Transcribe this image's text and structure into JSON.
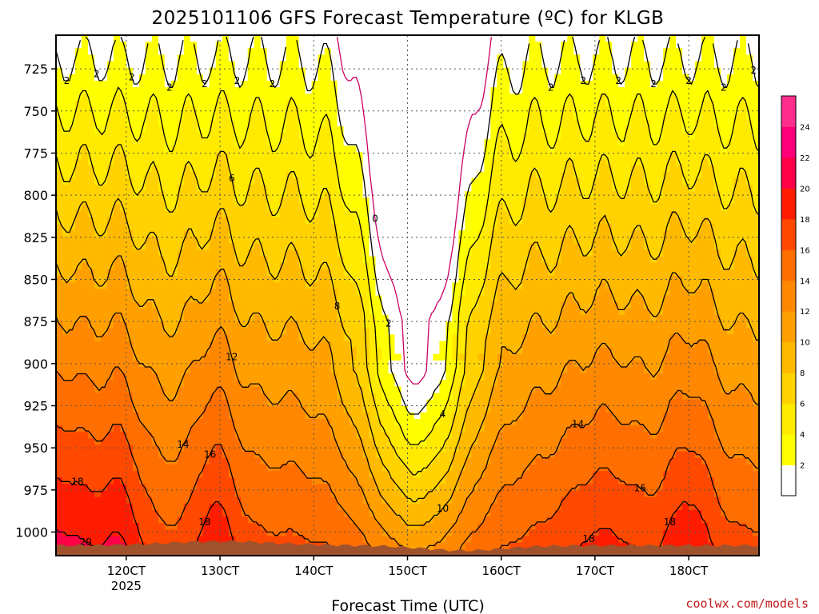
{
  "chart_data": {
    "type": "heatmap",
    "title": "2025101106 GFS Forecast Temperature (ºC) for KLGB",
    "xlabel": "Forecast Time (UTC)",
    "credit": "coolwx.com/models",
    "y_axis": {
      "ticks": [
        "725",
        "750",
        "775",
        "800",
        "825",
        "850",
        "875",
        "900",
        "925",
        "950",
        "975",
        "1000"
      ],
      "values": [
        725,
        750,
        775,
        800,
        825,
        850,
        875,
        900,
        925,
        950,
        975,
        1000
      ],
      "range": [
        705,
        1014
      ],
      "inverted": true
    },
    "x_axis": {
      "ticks": [
        "120CT",
        "130CT",
        "140CT",
        "150CT",
        "160CT",
        "170CT",
        "180CT"
      ],
      "sub_label": "2025",
      "hours": [
        120,
        130,
        140,
        150,
        160,
        170,
        180
      ],
      "range": [
        112.5,
        187.5
      ]
    },
    "grid": true,
    "colorbar": {
      "labels": [
        "2",
        "4",
        "6",
        "8",
        "10",
        "12",
        "14",
        "16",
        "18",
        "20",
        "22",
        "24"
      ],
      "levels": [
        0,
        2,
        4,
        6,
        8,
        10,
        12,
        14,
        16,
        18,
        20,
        22,
        24,
        26
      ],
      "colors": [
        "#ffffff",
        "#ffff00",
        "#ffea00",
        "#ffd200",
        "#ffba00",
        "#ffa000",
        "#ff8800",
        "#ff6e00",
        "#ff4800",
        "#ff1c00",
        "#ff0048",
        "#ff0078",
        "#ff2e8c"
      ]
    },
    "contours": [
      {
        "temperature": 0,
        "label": "0",
        "color": "#cc0066"
      },
      {
        "temperature": 2,
        "label": "2"
      },
      {
        "temperature": 4,
        "label": "4"
      },
      {
        "temperature": 6,
        "label": "6"
      },
      {
        "temperature": 8,
        "label": "8"
      },
      {
        "temperature": 10,
        "label": "10"
      },
      {
        "temperature": 12,
        "label": "12"
      },
      {
        "temperature": 14,
        "label": "14"
      },
      {
        "temperature": 16,
        "label": "16"
      },
      {
        "temperature": 18,
        "label": "18"
      },
      {
        "temperature": 20,
        "label": "20"
      }
    ],
    "ground_color": "#a0522d"
  }
}
